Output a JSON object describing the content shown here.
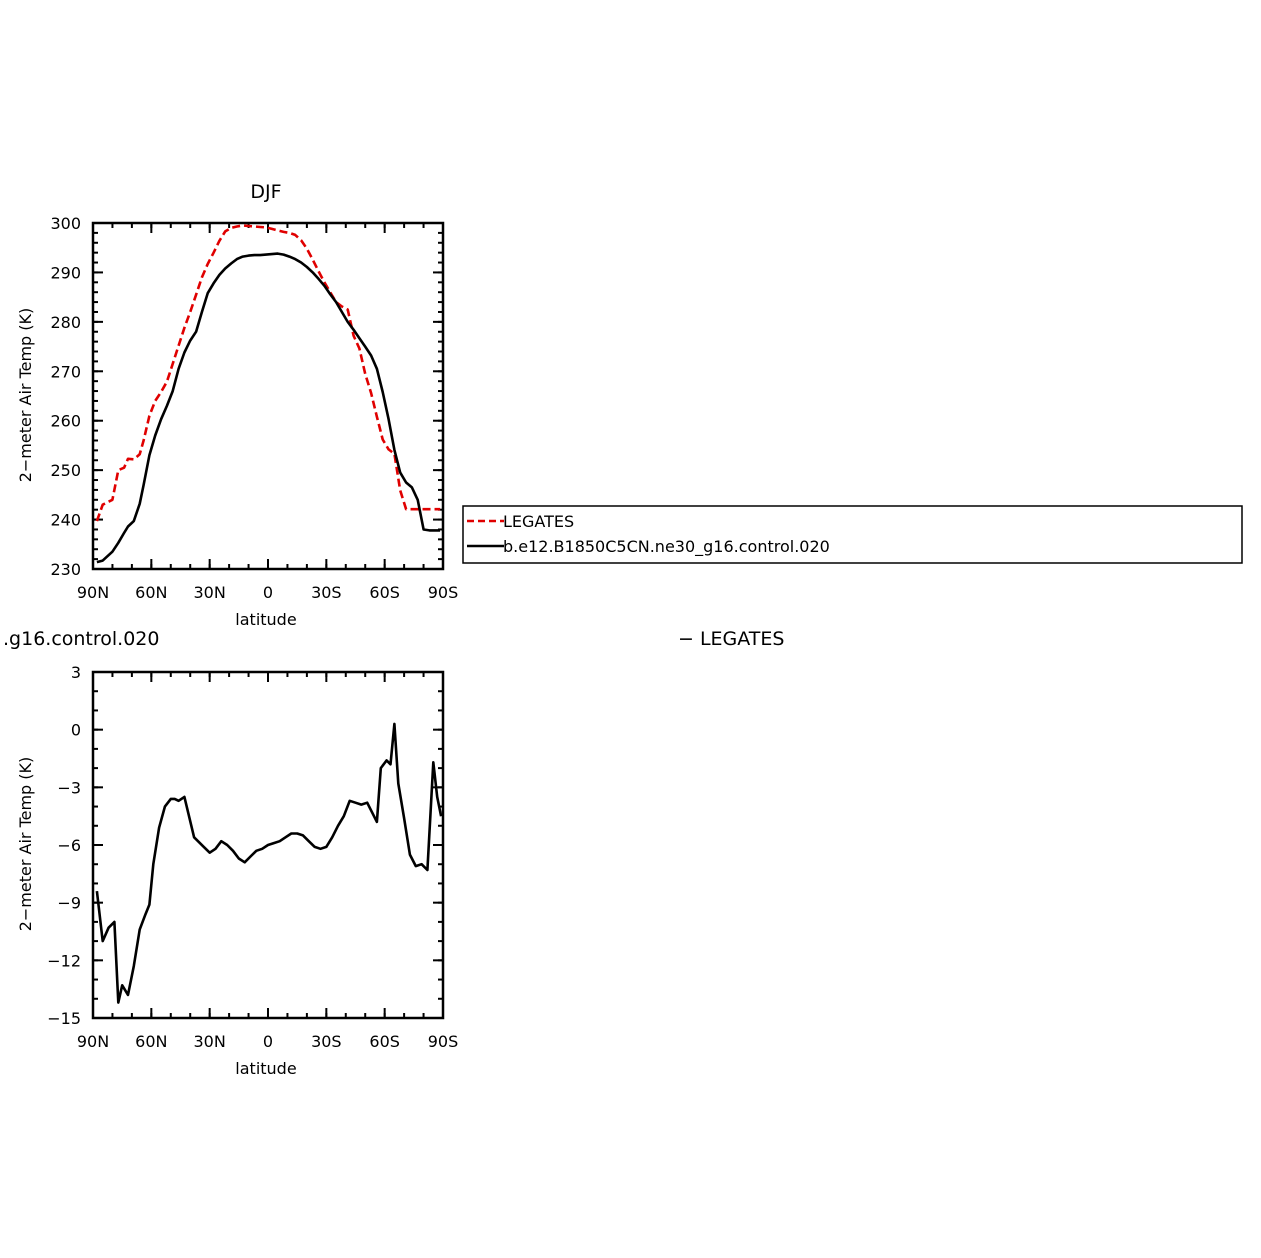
{
  "chart_data": [
    {
      "type": "line",
      "title": "DJF",
      "xlabel": "latitude",
      "ylabel": "2−meter Air Temp (K)",
      "xlim": [
        90,
        -90
      ],
      "ylim": [
        230,
        300
      ],
      "x_ticks": [
        {
          "value": 90,
          "label": "90N"
        },
        {
          "value": 60,
          "label": "60N"
        },
        {
          "value": 30,
          "label": "30N"
        },
        {
          "value": 0,
          "label": "0"
        },
        {
          "value": -30,
          "label": "30S"
        },
        {
          "value": -60,
          "label": "60S"
        },
        {
          "value": -90,
          "label": "90S"
        }
      ],
      "y_ticks": [
        230,
        240,
        250,
        260,
        270,
        280,
        290,
        300
      ],
      "legend": "right of plot",
      "series": [
        {
          "name": "LEGATES",
          "color": "#e00000",
          "dash": "dashed",
          "x": [
            88,
            85,
            80,
            77,
            74,
            72,
            69,
            66,
            64,
            61,
            58,
            55,
            52,
            49,
            46,
            43,
            40,
            37,
            34,
            31,
            28,
            25,
            22,
            19,
            16,
            13,
            10,
            7,
            4,
            1,
            -2,
            -5,
            -8,
            -11,
            -14,
            -17,
            -20,
            -23,
            -26,
            -29,
            -32,
            -35,
            -38,
            -41,
            -44,
            -47,
            -50,
            -53,
            -56,
            -59,
            -62,
            -65,
            -68,
            -71,
            -74,
            -77,
            -80,
            -83,
            -86,
            -88.5
          ],
          "values": [
            239.7,
            243,
            244,
            250,
            250.5,
            252.3,
            252.2,
            253.2,
            256,
            261,
            264,
            265.8,
            267.9,
            271.5,
            275.2,
            278.8,
            282,
            285.5,
            289,
            291.7,
            294,
            296.4,
            298.3,
            299,
            299.3,
            299.5,
            299.4,
            299.3,
            299.2,
            299.1,
            298.8,
            298.5,
            298.2,
            298,
            297.6,
            296.5,
            294.8,
            292.6,
            290.2,
            288,
            286,
            284,
            283.1,
            282.5,
            277.2,
            274.6,
            269.5,
            265.6,
            260.8,
            256.2,
            254.2,
            253.3,
            245.9,
            242.1,
            242.1,
            242.1,
            242.1,
            242.1,
            242.1,
            242.1
          ]
        },
        {
          "name": "b.e12.B1850C5CN.ne30_g16.control.020",
          "color": "#000000",
          "dash": "solid",
          "x": [
            88,
            85,
            80,
            77,
            74,
            72,
            69,
            66,
            64,
            61,
            58,
            55,
            52,
            49,
            46,
            43,
            40,
            37,
            34,
            31,
            28,
            25,
            22,
            19,
            16,
            13,
            10,
            7,
            4,
            1,
            -2,
            -5,
            -8,
            -11,
            -14,
            -17,
            -20,
            -23,
            -26,
            -29,
            -32,
            -35,
            -38,
            -41,
            -44,
            -47,
            -50,
            -53,
            -56,
            -59,
            -62,
            -65,
            -68,
            -71,
            -74,
            -77,
            -80,
            -83,
            -86,
            -88.5
          ],
          "values": [
            231.4,
            231.7,
            233.5,
            235.3,
            237.3,
            238.6,
            239.7,
            243.2,
            247,
            253,
            257,
            260.3,
            263,
            266,
            270.5,
            273.8,
            276.2,
            278,
            282,
            285.8,
            287.8,
            289.5,
            290.8,
            291.8,
            292.7,
            293.2,
            293.4,
            293.5,
            293.5,
            293.6,
            293.7,
            293.8,
            293.6,
            293.2,
            292.7,
            292,
            291.1,
            290,
            288.7,
            287.3,
            285.6,
            284,
            282,
            280,
            278.4,
            276.7,
            275,
            273.2,
            270.5,
            265.8,
            260.3,
            254.1,
            249.5,
            247.5,
            246.5,
            244,
            238,
            237.8,
            237.8,
            237.8
          ]
        }
      ]
    },
    {
      "type": "line",
      "title_left": ".g16.control.020",
      "title_right": "− LEGATES",
      "xlabel": "latitude",
      "ylabel": "2−meter Air Temp (K)",
      "xlim": [
        90,
        -90
      ],
      "ylim": [
        -15,
        3
      ],
      "x_ticks": [
        {
          "value": 90,
          "label": "90N"
        },
        {
          "value": 60,
          "label": "60N"
        },
        {
          "value": 30,
          "label": "30N"
        },
        {
          "value": 0,
          "label": "0"
        },
        {
          "value": -30,
          "label": "30S"
        },
        {
          "value": -60,
          "label": "60S"
        },
        {
          "value": -90,
          "label": "90S"
        }
      ],
      "y_ticks": [
        3,
        0,
        -3,
        -6,
        -9,
        -12,
        -15
      ],
      "series": [
        {
          "color": "#000000",
          "dash": "solid",
          "x": [
            88,
            85,
            82,
            79,
            77,
            75,
            72,
            69,
            66,
            63,
            61,
            59,
            56,
            53,
            50,
            48,
            46,
            43,
            38,
            33,
            30,
            27,
            24,
            21,
            18,
            15,
            12,
            9,
            6,
            3,
            0,
            -3,
            -6,
            -9,
            -12,
            -15,
            -18,
            -21,
            -24,
            -27,
            -30,
            -33,
            -36,
            -39,
            -42,
            -45,
            -48,
            -51,
            -54,
            -56,
            -58,
            -61,
            -63,
            -65,
            -67,
            -70,
            -73,
            -76,
            -79,
            -82,
            -85,
            -87,
            -89
          ],
          "values": [
            -8.4,
            -11,
            -10.3,
            -10,
            -14.2,
            -13.3,
            -13.8,
            -12.3,
            -10.4,
            -9.6,
            -9.1,
            -7,
            -5.1,
            -4,
            -3.6,
            -3.6,
            -3.7,
            -3.5,
            -5.6,
            -6.1,
            -6.4,
            -6.2,
            -5.8,
            -6,
            -6.3,
            -6.7,
            -6.9,
            -6.6,
            -6.3,
            -6.2,
            -6,
            -5.9,
            -5.8,
            -5.6,
            -5.4,
            -5.4,
            -5.5,
            -5.8,
            -6.1,
            -6.2,
            -6.1,
            -5.6,
            -5,
            -4.5,
            -3.7,
            -3.8,
            -3.9,
            -3.8,
            -4.4,
            -4.8,
            -2,
            -1.6,
            -1.8,
            0.3,
            -2.8,
            -4.6,
            -6.5,
            -7.1,
            -7,
            -7.3,
            -1.7,
            -3.5,
            -4.5
          ]
        }
      ]
    }
  ]
}
